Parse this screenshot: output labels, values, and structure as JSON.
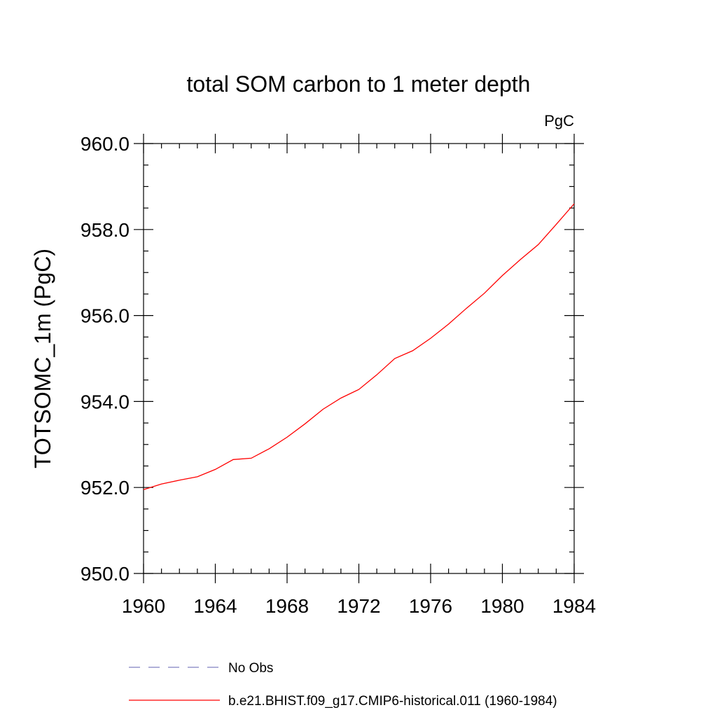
{
  "chart_data": {
    "type": "line",
    "title": "total SOM carbon to 1 meter depth",
    "units_label": "PgC",
    "ylabel": "TOTSOMC_1m  (PgC)",
    "xlabel": "",
    "xlim": [
      1960,
      1984
    ],
    "ylim": [
      950,
      960
    ],
    "x_ticks": [
      1960,
      1964,
      1968,
      1972,
      1976,
      1980,
      1984
    ],
    "x_tick_labels": [
      "1960",
      "1964",
      "1968",
      "1972",
      "1976",
      "1980",
      "1984"
    ],
    "y_ticks": [
      950,
      952,
      954,
      956,
      958,
      960
    ],
    "y_tick_labels": [
      "950.0",
      "952.0",
      "954.0",
      "956.0",
      "958.0",
      "960.0"
    ],
    "grid": false,
    "legend_position": "bottom",
    "series": [
      {
        "name": "b.e21.BHIST.f09_g17.CMIP6-historical.011 (1960-1984)",
        "color": "#ff0000",
        "style": "solid",
        "x": [
          1960,
          1961,
          1962,
          1963,
          1964,
          1965,
          1966,
          1967,
          1968,
          1969,
          1970,
          1971,
          1972,
          1973,
          1974,
          1975,
          1976,
          1977,
          1978,
          1979,
          1980,
          1981,
          1982,
          1983,
          1984
        ],
        "y": [
          951.95,
          952.08,
          952.17,
          952.25,
          952.42,
          952.65,
          952.68,
          952.9,
          953.17,
          953.48,
          953.82,
          954.08,
          954.28,
          954.62,
          955.0,
          955.18,
          955.47,
          955.8,
          956.17,
          956.52,
          956.93,
          957.3,
          957.65,
          958.12,
          958.6
        ]
      }
    ],
    "legend_entries": [
      {
        "label": "No Obs",
        "color": "#8080c0",
        "style": "dashed"
      },
      {
        "label": "b.e21.BHIST.f09_g17.CMIP6-historical.011 (1960-1984)",
        "color": "#ff0000",
        "style": "solid"
      }
    ]
  }
}
